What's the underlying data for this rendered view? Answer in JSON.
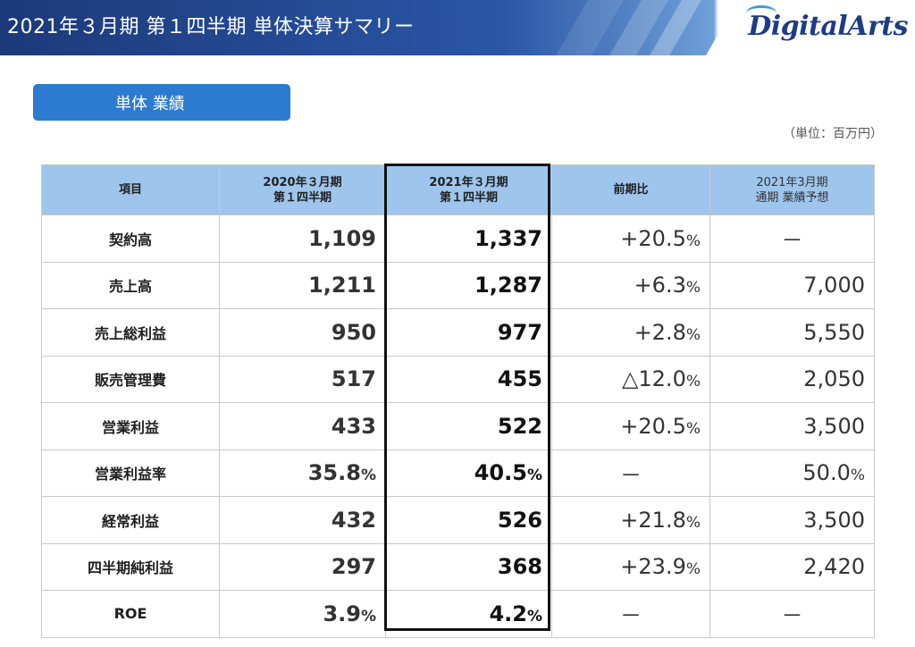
{
  "header": {
    "title": "2021年３月期 第１四半期 単体決算サマリー",
    "logo": "DigitalArts"
  },
  "section": {
    "label": "単体 業績"
  },
  "unit": "（単位：百万円）",
  "table": {
    "headers": {
      "item": "項目",
      "prev": [
        "2020年３月期",
        "第１四半期"
      ],
      "cur": [
        "2021年３月期",
        "第１四半期"
      ],
      "ratio": "前期比",
      "forecast": [
        "2021年3月期",
        "通期 業績予想"
      ]
    },
    "rows": [
      {
        "label": "契約高",
        "prev": "1,109",
        "prev_pct": "",
        "cur": "1,337",
        "cur_pct": "",
        "ratio": "+20.5",
        "ratio_pct": "%",
        "forecast": "－",
        "forecast_pct": ""
      },
      {
        "label": "売上高",
        "prev": "1,211",
        "prev_pct": "",
        "cur": "1,287",
        "cur_pct": "",
        "ratio": "+6.3",
        "ratio_pct": "%",
        "forecast": "7,000",
        "forecast_pct": ""
      },
      {
        "label": "売上総利益",
        "prev": "950",
        "prev_pct": "",
        "cur": "977",
        "cur_pct": "",
        "ratio": "+2.8",
        "ratio_pct": "%",
        "forecast": "5,550",
        "forecast_pct": ""
      },
      {
        "label": "販売管理費",
        "prev": "517",
        "prev_pct": "",
        "cur": "455",
        "cur_pct": "",
        "ratio": "△12.0",
        "ratio_pct": "%",
        "forecast": "2,050",
        "forecast_pct": ""
      },
      {
        "label": "営業利益",
        "prev": "433",
        "prev_pct": "",
        "cur": "522",
        "cur_pct": "",
        "ratio": "+20.5",
        "ratio_pct": "%",
        "forecast": "3,500",
        "forecast_pct": ""
      },
      {
        "label": "営業利益率",
        "prev": "35.8",
        "prev_pct": "%",
        "cur": "40.5",
        "cur_pct": "%",
        "ratio": "－",
        "ratio_pct": "",
        "forecast": "50.0",
        "forecast_pct": "%"
      },
      {
        "label": "経常利益",
        "prev": "432",
        "prev_pct": "",
        "cur": "526",
        "cur_pct": "",
        "ratio": "+21.8",
        "ratio_pct": "%",
        "forecast": "3,500",
        "forecast_pct": ""
      },
      {
        "label": "四半期純利益",
        "prev": "297",
        "prev_pct": "",
        "cur": "368",
        "cur_pct": "",
        "ratio": "+23.9",
        "ratio_pct": "%",
        "forecast": "2,420",
        "forecast_pct": ""
      },
      {
        "label": "ROE",
        "prev": "3.9",
        "prev_pct": "%",
        "cur": "4.2",
        "cur_pct": "%",
        "ratio": "－",
        "ratio_pct": "",
        "forecast": "－",
        "forecast_pct": ""
      }
    ]
  },
  "colors": {
    "banner": "#1c3a7a",
    "section_label": "#2c7bd0",
    "table_header": "#9ec5ec",
    "highlight_border": "#111111"
  }
}
